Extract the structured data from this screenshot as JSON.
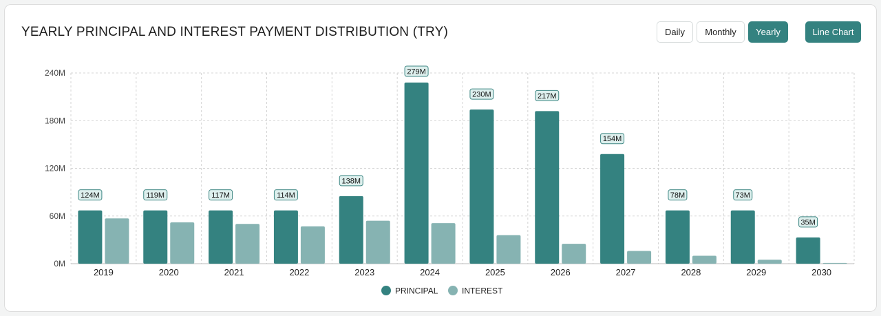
{
  "header": {
    "title": "YEARLY PRINCIPAL AND INTEREST PAYMENT DISTRIBUTION (TRY)",
    "period_buttons": [
      "Daily",
      "Monthly",
      "Yearly"
    ],
    "active_period": "Yearly",
    "chart_type_button": "Line Chart"
  },
  "colors": {
    "principal": "#348280",
    "interest": "#86b3b2",
    "accent": "#348280"
  },
  "chart_data": {
    "type": "bar",
    "title": "YEARLY PRINCIPAL AND INTEREST PAYMENT DISTRIBUTION (TRY)",
    "categories": [
      "2019",
      "2020",
      "2021",
      "2022",
      "2023",
      "2024",
      "2025",
      "2026",
      "2027",
      "2028",
      "2029",
      "2030"
    ],
    "series": [
      {
        "name": "PRINCIPAL",
        "values": [
          67,
          67,
          67,
          67,
          85,
          228,
          194,
          192,
          138,
          67,
          67,
          33
        ]
      },
      {
        "name": "INTEREST",
        "values": [
          57,
          52,
          50,
          47,
          54,
          51,
          36,
          25,
          16,
          10,
          5,
          1
        ]
      }
    ],
    "totals": [
      "124M",
      "119M",
      "117M",
      "114M",
      "138M",
      "279M",
      "230M",
      "217M",
      "154M",
      "78M",
      "73M",
      "35M"
    ],
    "yticks": [
      0,
      60,
      120,
      180,
      240
    ],
    "ytick_labels": [
      "0M",
      "60M",
      "120M",
      "180M",
      "240M"
    ],
    "ylim": [
      0,
      240
    ],
    "unit": "M",
    "legend_position": "bottom-center",
    "grid": true,
    "xlabel": "",
    "ylabel": ""
  }
}
